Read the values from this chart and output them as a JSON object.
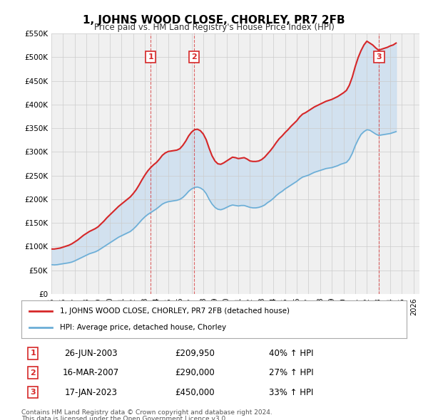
{
  "title": "1, JOHNS WOOD CLOSE, CHORLEY, PR7 2FB",
  "subtitle": "Price paid vs. HM Land Registry's House Price Index (HPI)",
  "hpi_color": "#6baed6",
  "price_color": "#d62728",
  "shade_color": "#c6dbef",
  "grid_color": "#cccccc",
  "bg_color": "#f0f0f0",
  "ylim": [
    0,
    550000
  ],
  "yticks": [
    0,
    50000,
    100000,
    150000,
    200000,
    250000,
    300000,
    350000,
    400000,
    450000,
    500000,
    550000
  ],
  "ytick_labels": [
    "£0",
    "£50K",
    "£100K",
    "£150K",
    "£200K",
    "£250K",
    "£300K",
    "£350K",
    "£400K",
    "£450K",
    "£500K",
    "£550K"
  ],
  "xlim_start": 1995.0,
  "xlim_end": 2026.5,
  "xticks": [
    1995,
    1996,
    1997,
    1998,
    1999,
    2000,
    2001,
    2002,
    2003,
    2004,
    2005,
    2006,
    2007,
    2008,
    2009,
    2010,
    2011,
    2012,
    2013,
    2014,
    2015,
    2016,
    2017,
    2018,
    2019,
    2020,
    2021,
    2022,
    2023,
    2024,
    2025,
    2026
  ],
  "sales": [
    {
      "label": "1",
      "date": 2003.49,
      "price": 209950,
      "date_str": "26-JUN-2003",
      "price_str": "£209,950",
      "hpi_str": "40% ↑ HPI"
    },
    {
      "label": "2",
      "date": 2007.21,
      "price": 290000,
      "date_str": "16-MAR-2007",
      "price_str": "£290,000",
      "hpi_str": "27% ↑ HPI"
    },
    {
      "label": "3",
      "date": 2023.05,
      "price": 450000,
      "date_str": "17-JAN-2023",
      "price_str": "£450,000",
      "hpi_str": "33% ↑ HPI"
    }
  ],
  "legend_line1": "1, JOHNS WOOD CLOSE, CHORLEY, PR7 2FB (detached house)",
  "legend_line2": "HPI: Average price, detached house, Chorley",
  "footer1": "Contains HM Land Registry data © Crown copyright and database right 2024.",
  "footer2": "This data is licensed under the Open Government Licence v3.0.",
  "hpi_data_x": [
    1995.0,
    1995.25,
    1995.5,
    1995.75,
    1996.0,
    1996.25,
    1996.5,
    1996.75,
    1997.0,
    1997.25,
    1997.5,
    1997.75,
    1998.0,
    1998.25,
    1998.5,
    1998.75,
    1999.0,
    1999.25,
    1999.5,
    1999.75,
    2000.0,
    2000.25,
    2000.5,
    2000.75,
    2001.0,
    2001.25,
    2001.5,
    2001.75,
    2002.0,
    2002.25,
    2002.5,
    2002.75,
    2003.0,
    2003.25,
    2003.5,
    2003.75,
    2004.0,
    2004.25,
    2004.5,
    2004.75,
    2005.0,
    2005.25,
    2005.5,
    2005.75,
    2006.0,
    2006.25,
    2006.5,
    2006.75,
    2007.0,
    2007.25,
    2007.5,
    2007.75,
    2008.0,
    2008.25,
    2008.5,
    2008.75,
    2009.0,
    2009.25,
    2009.5,
    2009.75,
    2010.0,
    2010.25,
    2010.5,
    2010.75,
    2011.0,
    2011.25,
    2011.5,
    2011.75,
    2012.0,
    2012.25,
    2012.5,
    2012.75,
    2013.0,
    2013.25,
    2013.5,
    2013.75,
    2014.0,
    2014.25,
    2014.5,
    2014.75,
    2015.0,
    2015.25,
    2015.5,
    2015.75,
    2016.0,
    2016.25,
    2016.5,
    2016.75,
    2017.0,
    2017.25,
    2017.5,
    2017.75,
    2018.0,
    2018.25,
    2018.5,
    2018.75,
    2019.0,
    2019.25,
    2019.5,
    2019.75,
    2020.0,
    2020.25,
    2020.5,
    2020.75,
    2021.0,
    2021.25,
    2021.5,
    2021.75,
    2022.0,
    2022.25,
    2022.5,
    2022.75,
    2023.0,
    2023.25,
    2023.5,
    2023.75,
    2024.0,
    2024.25,
    2024.5
  ],
  "hpi_data_y": [
    62000,
    61500,
    62000,
    63000,
    64000,
    65000,
    66000,
    67500,
    70000,
    73000,
    76000,
    79000,
    82000,
    85000,
    87000,
    89000,
    92000,
    96000,
    100000,
    104000,
    108000,
    112000,
    116000,
    120000,
    123000,
    126000,
    129000,
    132000,
    137000,
    143000,
    150000,
    157000,
    163000,
    168000,
    172000,
    176000,
    180000,
    185000,
    190000,
    193000,
    195000,
    196000,
    197000,
    198000,
    200000,
    204000,
    210000,
    217000,
    222000,
    225000,
    226000,
    224000,
    220000,
    212000,
    200000,
    190000,
    183000,
    179000,
    178000,
    180000,
    183000,
    186000,
    188000,
    187000,
    186000,
    187000,
    187000,
    185000,
    183000,
    182000,
    182000,
    183000,
    185000,
    188000,
    193000,
    197000,
    202000,
    208000,
    213000,
    217000,
    222000,
    226000,
    230000,
    234000,
    238000,
    243000,
    247000,
    249000,
    251000,
    254000,
    257000,
    259000,
    261000,
    263000,
    265000,
    266000,
    267000,
    269000,
    271000,
    274000,
    276000,
    278000,
    285000,
    297000,
    313000,
    326000,
    337000,
    343000,
    347000,
    346000,
    342000,
    338000,
    335000,
    336000,
    337000,
    338000,
    339000,
    341000,
    343000
  ],
  "red_data_x": [
    1995.0,
    1995.25,
    1995.5,
    1995.75,
    1996.0,
    1996.25,
    1996.5,
    1996.75,
    1997.0,
    1997.25,
    1997.5,
    1997.75,
    1998.0,
    1998.25,
    1998.5,
    1998.75,
    1999.0,
    1999.25,
    1999.5,
    1999.75,
    2000.0,
    2000.25,
    2000.5,
    2000.75,
    2001.0,
    2001.25,
    2001.5,
    2001.75,
    2002.0,
    2002.25,
    2002.5,
    2002.75,
    2003.0,
    2003.25,
    2003.5,
    2003.75,
    2004.0,
    2004.25,
    2004.5,
    2004.75,
    2005.0,
    2005.25,
    2005.5,
    2005.75,
    2006.0,
    2006.25,
    2006.5,
    2006.75,
    2007.0,
    2007.25,
    2007.5,
    2007.75,
    2008.0,
    2008.25,
    2008.5,
    2008.75,
    2009.0,
    2009.25,
    2009.5,
    2009.75,
    2010.0,
    2010.25,
    2010.5,
    2010.75,
    2011.0,
    2011.25,
    2011.5,
    2011.75,
    2012.0,
    2012.25,
    2012.5,
    2012.75,
    2013.0,
    2013.25,
    2013.5,
    2013.75,
    2014.0,
    2014.25,
    2014.5,
    2014.75,
    2015.0,
    2015.25,
    2015.5,
    2015.75,
    2016.0,
    2016.25,
    2016.5,
    2016.75,
    2017.0,
    2017.25,
    2017.5,
    2017.75,
    2018.0,
    2018.25,
    2018.5,
    2018.75,
    2019.0,
    2019.25,
    2019.5,
    2019.75,
    2020.0,
    2020.25,
    2020.5,
    2020.75,
    2021.0,
    2021.25,
    2021.5,
    2021.75,
    2022.0,
    2022.25,
    2022.5,
    2022.75,
    2023.0,
    2023.25,
    2023.5,
    2023.75,
    2024.0,
    2024.25,
    2024.5
  ],
  "red_data_y": [
    95000,
    95000,
    96000,
    97000,
    99000,
    101000,
    103000,
    106000,
    110000,
    114000,
    119000,
    124000,
    128000,
    132000,
    135000,
    138000,
    142000,
    148000,
    154000,
    161000,
    167000,
    173000,
    179000,
    185000,
    190000,
    195000,
    200000,
    205000,
    212000,
    220000,
    230000,
    241000,
    251000,
    260000,
    267000,
    273000,
    278000,
    285000,
    293000,
    298000,
    301000,
    302000,
    303000,
    304000,
    307000,
    314000,
    323000,
    334000,
    342000,
    347000,
    348000,
    345000,
    338000,
    326000,
    308000,
    292000,
    281000,
    275000,
    274000,
    277000,
    281000,
    285000,
    289000,
    288000,
    286000,
    287000,
    288000,
    285000,
    281000,
    280000,
    280000,
    281000,
    284000,
    289000,
    296000,
    303000,
    311000,
    320000,
    328000,
    334000,
    341000,
    347000,
    354000,
    360000,
    366000,
    374000,
    380000,
    383000,
    387000,
    391000,
    395000,
    398000,
    401000,
    404000,
    407000,
    409000,
    411000,
    414000,
    417000,
    421000,
    425000,
    430000,
    441000,
    458000,
    480000,
    499000,
    514000,
    526000,
    534000,
    530000,
    526000,
    520000,
    515000,
    517000,
    519000,
    521000,
    524000,
    526000,
    530000
  ]
}
